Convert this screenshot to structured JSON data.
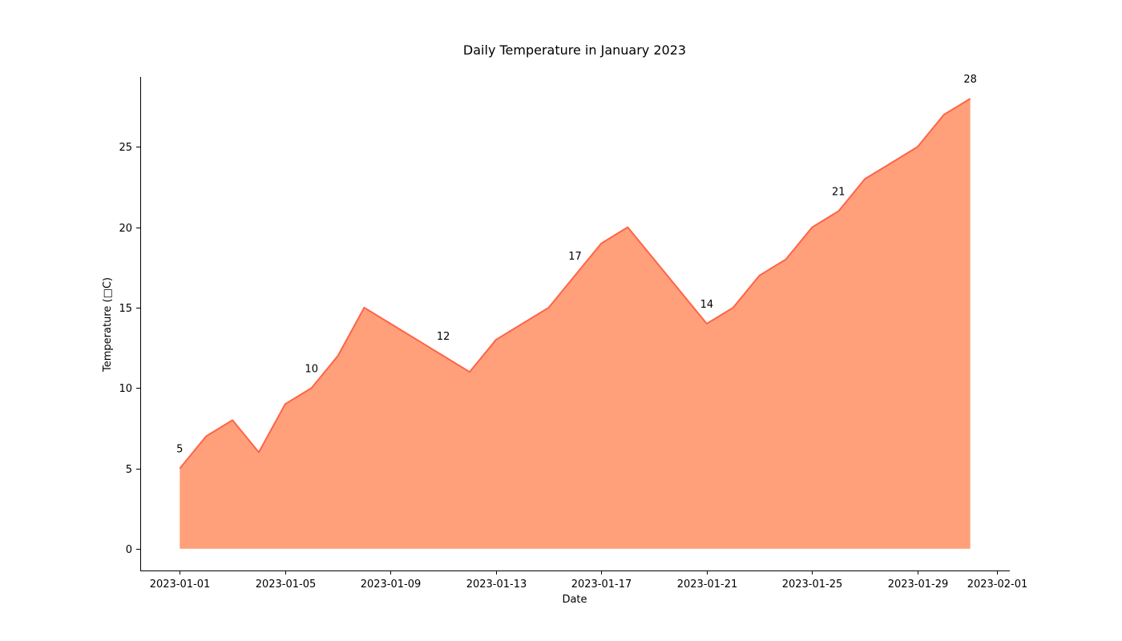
{
  "chart_data": {
    "type": "area",
    "title": "Daily Temperature in January 2023",
    "xlabel": "Date",
    "ylabel": "Temperature (□C)",
    "x": [
      "2023-01-01",
      "2023-01-02",
      "2023-01-03",
      "2023-01-04",
      "2023-01-05",
      "2023-01-06",
      "2023-01-07",
      "2023-01-08",
      "2023-01-09",
      "2023-01-10",
      "2023-01-11",
      "2023-01-12",
      "2023-01-13",
      "2023-01-14",
      "2023-01-15",
      "2023-01-16",
      "2023-01-17",
      "2023-01-18",
      "2023-01-19",
      "2023-01-20",
      "2023-01-21",
      "2023-01-22",
      "2023-01-23",
      "2023-01-24",
      "2023-01-25",
      "2023-01-26",
      "2023-01-27",
      "2023-01-28",
      "2023-01-29",
      "2023-01-30",
      "2023-01-31"
    ],
    "series": [
      {
        "values": [
          5,
          7,
          8,
          6,
          9,
          10,
          12,
          15,
          14,
          13,
          12,
          11,
          13,
          14,
          15,
          17,
          19,
          20,
          18,
          16,
          14,
          15,
          17,
          18,
          20,
          21,
          23,
          24,
          25,
          27,
          28
        ],
        "fill_color": "#ffa07a",
        "line_color": "#ff6347"
      }
    ],
    "annotations": [
      {
        "x": "2023-01-01",
        "label": "5"
      },
      {
        "x": "2023-01-06",
        "label": "10"
      },
      {
        "x": "2023-01-11",
        "label": "12"
      },
      {
        "x": "2023-01-16",
        "label": "17"
      },
      {
        "x": "2023-01-21",
        "label": "14"
      },
      {
        "x": "2023-01-26",
        "label": "21"
      },
      {
        "x": "2023-01-31",
        "label": "28"
      }
    ],
    "x_ticks": [
      "2023-01-01",
      "2023-01-05",
      "2023-01-09",
      "2023-01-13",
      "2023-01-17",
      "2023-01-21",
      "2023-01-25",
      "2023-01-29",
      "2023-02-01"
    ],
    "y_ticks": [
      "0",
      "5",
      "10",
      "15",
      "20",
      "25"
    ],
    "xlim": [
      "2022-12-30.5",
      "2023-02-01.5"
    ],
    "ylim": [
      -1.35,
      29.35
    ],
    "grid": false,
    "spines": "left-bottom"
  }
}
